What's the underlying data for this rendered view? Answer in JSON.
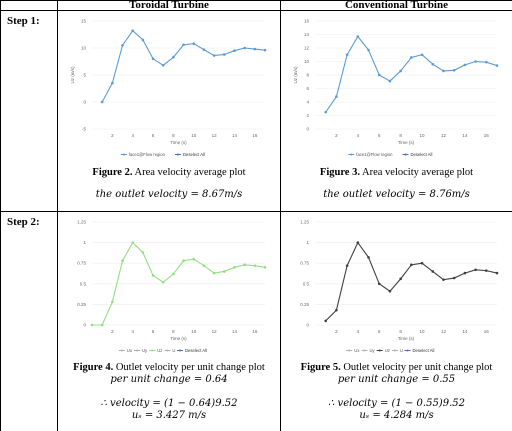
{
  "header": {
    "col_toroidal": "Toroidal Turbine",
    "col_conventional": "Conventional Turbine"
  },
  "steps": {
    "step1": "Step 1:",
    "step2": "Step 2:"
  },
  "captions": {
    "fig2_num": "Figure 2.",
    "fig2_text": " Area velocity average plot",
    "fig2_math": "the outlet velocity = 8.67m/s",
    "fig3_num": "Figure 3.",
    "fig3_text": " Area velocity average plot",
    "fig3_math": "the outlet velocity = 8.76m/s",
    "fig4_num": "Figure 4.",
    "fig4_text": " Outlet velocity per unit change plot",
    "fig4_math1": "per unit change = 0.64",
    "fig4_math2": "∴ velocity = (1 − 0.64)9.52",
    "fig4_math3": "uₛ = 3.427 m/s",
    "fig5_num": "Figure 5.",
    "fig5_text": " Outlet velocity per unit change plot",
    "fig5_math1": "per unit change = 0.55",
    "fig5_math2": "∴ velocity = (1 − 0.55)9.52",
    "fig5_math3": "uₛ = 4.284 m/s"
  },
  "chart_data": [
    {
      "id": "fig2",
      "type": "line",
      "color": "#5b9bd5",
      "xlabel": "Time (s)",
      "ylabel": "Uz (m/s)",
      "xticks": [
        2,
        4,
        6,
        8,
        10,
        12,
        14,
        16
      ],
      "yticks": [
        -5,
        0,
        5,
        10,
        15
      ],
      "ylim": [
        -5,
        15
      ],
      "xlim": [
        0,
        17
      ],
      "x": [
        1,
        2,
        3,
        4,
        5,
        6,
        7,
        8,
        9,
        10,
        11,
        12,
        13,
        14,
        15,
        16,
        17
      ],
      "values": [
        0,
        3.5,
        10.5,
        13.2,
        11.5,
        8.0,
        6.8,
        8.3,
        10.6,
        10.8,
        9.7,
        8.6,
        8.8,
        9.5,
        10.0,
        9.8,
        9.6
      ],
      "legend": [
        "face1@Flow region",
        "Deselect All"
      ]
    },
    {
      "id": "fig3",
      "type": "line",
      "color": "#5b9bd5",
      "xlabel": "Time (s)",
      "ylabel": "Uz (m/s)",
      "xticks": [
        2,
        4,
        6,
        8,
        10,
        12,
        14,
        16
      ],
      "yticks": [
        0,
        2,
        4,
        6,
        8,
        10,
        12,
        14,
        16
      ],
      "ylim": [
        0,
        16
      ],
      "xlim": [
        0,
        17
      ],
      "x": [
        1,
        2,
        3,
        4,
        5,
        6,
        7,
        8,
        9,
        10,
        11,
        12,
        13,
        14,
        15,
        16,
        17
      ],
      "values": [
        2.5,
        4.8,
        11.0,
        13.7,
        11.7,
        8.0,
        7.1,
        8.6,
        10.6,
        11.0,
        9.6,
        8.6,
        8.7,
        9.5,
        10.0,
        9.9,
        9.4
      ],
      "legend": [
        "face1@Flow region",
        "Deselect All"
      ]
    },
    {
      "id": "fig4",
      "type": "line",
      "color": "#90e080",
      "xlabel": "Time (s)",
      "ylabel": "",
      "xticks": [
        2,
        4,
        6,
        8,
        10,
        12,
        14,
        16
      ],
      "yticks": [
        0,
        0.25,
        0.5,
        0.75,
        1,
        1.25
      ],
      "ylim": [
        0,
        1.25
      ],
      "xlim": [
        0,
        17
      ],
      "x": [
        0,
        1,
        2,
        3,
        4,
        5,
        6,
        7,
        8,
        9,
        10,
        11,
        12,
        13,
        14,
        15,
        16,
        17
      ],
      "values": [
        0,
        0,
        0.28,
        0.78,
        1.0,
        0.88,
        0.6,
        0.52,
        0.62,
        0.78,
        0.8,
        0.72,
        0.63,
        0.65,
        0.7,
        0.73,
        0.72,
        0.7
      ],
      "legend": [
        "Ux",
        "Uy",
        "Uz",
        "U",
        "Deselect All"
      ]
    },
    {
      "id": "fig5",
      "type": "line",
      "color": "#404040",
      "xlabel": "Time (s)",
      "ylabel": "",
      "xticks": [
        2,
        4,
        6,
        8,
        10,
        12,
        14,
        16
      ],
      "yticks": [
        0,
        0.25,
        0.5,
        0.75,
        1,
        1.25
      ],
      "ylim": [
        0,
        1.25
      ],
      "xlim": [
        0,
        17
      ],
      "x": [
        1,
        2,
        3,
        4,
        5,
        6,
        7,
        8,
        9,
        10,
        11,
        12,
        13,
        14,
        15,
        16,
        17
      ],
      "values": [
        0.05,
        0.18,
        0.72,
        1.0,
        0.82,
        0.5,
        0.41,
        0.56,
        0.73,
        0.75,
        0.65,
        0.55,
        0.57,
        0.63,
        0.67,
        0.66,
        0.63
      ],
      "legend": [
        "Ux",
        "Uy",
        "Uz",
        "U",
        "Deselect All"
      ]
    }
  ]
}
